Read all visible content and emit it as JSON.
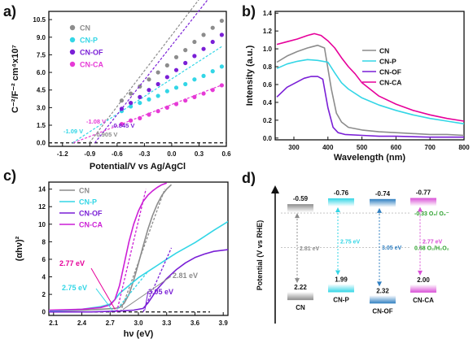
{
  "chart_data": [
    {
      "panel": "a)",
      "type": "scatter",
      "xlabel": "Potential/V vs Ag/AgCl",
      "ylabel": "C⁻²/F⁻² cm⁴x10⁷",
      "xlim": [
        -1.35,
        0.6
      ],
      "ylim": [
        -0.3,
        11.2
      ],
      "x_ticks": [
        "-1.2",
        "-0.9",
        "-0.6",
        "-0.3",
        "0.0",
        "0.3",
        "0.6"
      ],
      "x_tick_values": [
        -1.2,
        -0.9,
        -0.6,
        -0.3,
        0.0,
        0.3,
        0.6
      ],
      "y_ticks": [
        "0.0",
        "1.5",
        "3.0",
        "4.5",
        "6.0",
        "7.5",
        "9.0",
        "10.5"
      ],
      "y_tick_values": [
        0.0,
        1.5,
        3.0,
        4.5,
        6.0,
        7.5,
        9.0,
        10.5
      ],
      "legend_position": "top-left",
      "series": [
        {
          "name": "CN",
          "color": "#8c8c8c",
          "x": [
            -0.55,
            -0.45,
            -0.35,
            -0.25,
            -0.15,
            -0.05,
            0.05,
            0.15,
            0.25,
            0.35,
            0.45,
            0.55
          ],
          "y": [
            3.6,
            4.2,
            4.8,
            5.4,
            6.0,
            6.6,
            7.3,
            7.9,
            8.6,
            9.2,
            9.8,
            10.4
          ],
          "fit": {
            "x": [
              -0.905,
              -0.55
            ],
            "y": [
              0.0,
              3.6
            ]
          }
        },
        {
          "name": "CN-P",
          "color": "#33d6e6",
          "x": [
            -0.55,
            -0.45,
            -0.35,
            -0.25,
            -0.15,
            -0.05,
            0.05,
            0.15,
            0.25,
            0.35,
            0.45,
            0.55
          ],
          "y": [
            2.7,
            3.1,
            3.4,
            3.7,
            4.0,
            4.4,
            4.7,
            5.0,
            5.4,
            5.7,
            6.1,
            6.5
          ],
          "fit": {
            "x": [
              -1.09,
              -0.55
            ],
            "y": [
              0.0,
              2.7
            ]
          }
        },
        {
          "name": "CN-OF",
          "color": "#7a1fd6",
          "x": [
            -0.55,
            -0.45,
            -0.35,
            -0.25,
            -0.15,
            -0.05,
            0.05,
            0.15,
            0.25,
            0.35,
            0.45,
            0.55
          ],
          "y": [
            2.9,
            3.4,
            3.9,
            4.5,
            5.0,
            5.6,
            6.2,
            6.8,
            7.4,
            8.0,
            8.6,
            9.2
          ],
          "fit": {
            "x": [
              -0.845,
              -0.55
            ],
            "y": [
              0.0,
              2.9
            ]
          }
        },
        {
          "name": "CN-CA",
          "color": "#e63ad6",
          "x": [
            -0.55,
            -0.45,
            -0.35,
            -0.25,
            -0.15,
            -0.05,
            0.05,
            0.15,
            0.25,
            0.35,
            0.45,
            0.55
          ],
          "y": [
            1.6,
            1.9,
            2.1,
            2.4,
            2.7,
            3.0,
            3.3,
            3.6,
            3.9,
            4.2,
            4.5,
            4.9
          ],
          "fit": {
            "x": [
              -1.08,
              -0.55
            ],
            "y": [
              0.0,
              1.6
            ]
          }
        }
      ],
      "baseline": 0.0,
      "annotations": [
        {
          "text": "-1.08 V",
          "x": -1.08,
          "y": 0.0,
          "color": "#e63ad6"
        },
        {
          "text": "-1.09 V",
          "x": -1.09,
          "y": 0.0,
          "color": "#33d6e6"
        },
        {
          "text": "-0.905 V",
          "x": -0.905,
          "y": 0.0,
          "color": "#8c8c8c"
        },
        {
          "text": "-0.845 V",
          "x": -0.845,
          "y": 0.0,
          "color": "#7a1fd6"
        }
      ]
    },
    {
      "panel": "b)",
      "type": "line",
      "xlabel": "Wavelength (nm)",
      "ylabel": "Intensity (a.u.)",
      "xlim": [
        245,
        800
      ],
      "ylim": [
        -0.02,
        1.42
      ],
      "x_ticks": [
        "300",
        "400",
        "500",
        "600",
        "700",
        "800"
      ],
      "x_tick_values": [
        300,
        400,
        500,
        600,
        700,
        800
      ],
      "y_ticks": [
        "0.0",
        "0.2",
        "0.4",
        "0.6",
        "0.8",
        "1.0",
        "1.2",
        "1.4"
      ],
      "y_tick_values": [
        0.0,
        0.2,
        0.4,
        0.6,
        0.8,
        1.0,
        1.2,
        1.4
      ],
      "legend_position": "top-right",
      "series": [
        {
          "name": "CN",
          "color": "#8c8c8c",
          "x": [
            250,
            280,
            310,
            340,
            370,
            390,
            410,
            425,
            440,
            460,
            500,
            550,
            600,
            650,
            700,
            750,
            800
          ],
          "y": [
            0.85,
            0.92,
            0.97,
            1.01,
            1.04,
            1.01,
            0.55,
            0.28,
            0.18,
            0.12,
            0.09,
            0.07,
            0.06,
            0.05,
            0.04,
            0.04,
            0.03
          ]
        },
        {
          "name": "CN-P",
          "color": "#33d6e6",
          "x": [
            250,
            280,
            310,
            340,
            370,
            400,
            420,
            440,
            460,
            500,
            550,
            600,
            650,
            700,
            750,
            800
          ],
          "y": [
            0.78,
            0.83,
            0.86,
            0.88,
            0.87,
            0.85,
            0.73,
            0.62,
            0.55,
            0.45,
            0.37,
            0.31,
            0.26,
            0.22,
            0.19,
            0.16
          ]
        },
        {
          "name": "CN-OF",
          "color": "#7a1fd6",
          "x": [
            250,
            280,
            310,
            330,
            350,
            370,
            385,
            400,
            415,
            430,
            450,
            500,
            550,
            600,
            700,
            800
          ],
          "y": [
            0.46,
            0.57,
            0.63,
            0.67,
            0.69,
            0.69,
            0.66,
            0.34,
            0.12,
            0.06,
            0.04,
            0.03,
            0.02,
            0.02,
            0.01,
            0.01
          ]
        },
        {
          "name": "CN-CA",
          "color": "#e6009a",
          "x": [
            250,
            280,
            310,
            340,
            360,
            380,
            400,
            420,
            440,
            460,
            480,
            500,
            550,
            600,
            650,
            700,
            750,
            800
          ],
          "y": [
            1.05,
            1.08,
            1.11,
            1.15,
            1.17,
            1.15,
            1.09,
            1.01,
            0.9,
            0.8,
            0.72,
            0.62,
            0.47,
            0.38,
            0.31,
            0.26,
            0.22,
            0.19
          ]
        }
      ]
    },
    {
      "panel": "c)",
      "type": "line",
      "xlabel": "hν (eV)",
      "ylabel": "(αhν)²",
      "xlim": [
        2.05,
        3.95
      ],
      "ylim": [
        -0.4,
        14.8
      ],
      "x_ticks": [
        "2.1",
        "2.4",
        "2.7",
        "3.0",
        "3.3",
        "3.6",
        "3.9"
      ],
      "x_tick_values": [
        2.1,
        2.4,
        2.7,
        3.0,
        3.3,
        3.6,
        3.9
      ],
      "y_ticks": [
        "0",
        "2",
        "4",
        "6",
        "8",
        "10",
        "12",
        "14"
      ],
      "y_tick_values": [
        0,
        2,
        4,
        6,
        8,
        10,
        12,
        14
      ],
      "legend_position": "top-left",
      "series": [
        {
          "name": "CN",
          "color": "#8c8c8c",
          "x": [
            2.05,
            2.4,
            2.6,
            2.75,
            2.8,
            2.85,
            2.9,
            2.95,
            3.0,
            3.05,
            3.1,
            3.15,
            3.2,
            3.25,
            3.3,
            3.35
          ],
          "y": [
            0.1,
            0.2,
            0.3,
            0.4,
            0.5,
            1.0,
            2.0,
            3.6,
            5.5,
            7.5,
            9.4,
            11.0,
            12.3,
            13.3,
            14.0,
            14.5
          ],
          "fit": {
            "x": [
              2.81,
              3.28
            ],
            "y": [
              0.0,
              14.0
            ]
          }
        },
        {
          "name": "CN-P",
          "color": "#33d6e6",
          "x": [
            2.05,
            2.4,
            2.6,
            2.7,
            2.75,
            2.8,
            2.9,
            3.0,
            3.1,
            3.2,
            3.3,
            3.4,
            3.5,
            3.6,
            3.7,
            3.8,
            3.95
          ],
          "y": [
            0.1,
            0.3,
            0.6,
            0.9,
            1.4,
            2.1,
            3.0,
            3.9,
            4.6,
            5.3,
            6.0,
            6.7,
            7.3,
            7.9,
            8.6,
            9.3,
            10.3
          ],
          "fit": {
            "x": [
              2.75,
              3.1
            ],
            "y": [
              0.0,
              4.6
            ]
          }
        },
        {
          "name": "CN-OF",
          "color": "#7a1fd6",
          "x": [
            2.05,
            2.5,
            2.8,
            2.95,
            3.05,
            3.1,
            3.15,
            3.2,
            3.3,
            3.4,
            3.5,
            3.6,
            3.7,
            3.8,
            3.95
          ],
          "y": [
            0.0,
            0.0,
            0.1,
            0.2,
            0.4,
            1.0,
            1.8,
            2.6,
            3.8,
            4.8,
            5.6,
            6.2,
            6.6,
            6.9,
            7.1
          ],
          "fit": {
            "x": [
              3.05,
              3.35
            ],
            "y": [
              0.0,
              7.3
            ]
          }
        },
        {
          "name": "CN-CA",
          "color": "#cc1fd6",
          "x": [
            2.05,
            2.4,
            2.6,
            2.7,
            2.75,
            2.8,
            2.85,
            2.9,
            2.95,
            3.0,
            3.05,
            3.1,
            3.15,
            3.2,
            3.25,
            3.3
          ],
          "y": [
            0.2,
            0.3,
            0.5,
            0.8,
            1.4,
            3.0,
            5.5,
            8.0,
            10.0,
            11.5,
            12.6,
            13.3,
            13.8,
            14.2,
            14.5,
            14.7
          ],
          "fit": {
            "x": [
              2.77,
              3.08
            ],
            "y": [
              0.0,
              14.0
            ]
          }
        }
      ],
      "baseline": 0.0,
      "annotations": [
        {
          "text": "2.77 eV",
          "color": "#e6009a"
        },
        {
          "text": "2.81 eV",
          "color": "#8c8c8c"
        },
        {
          "text": "2.75 eV",
          "color": "#33d6e6"
        },
        {
          "text": "3.05 eV",
          "color": "#7a1fd6"
        }
      ]
    },
    {
      "panel": "d)",
      "type": "diagram",
      "ylabel": "Potential (V vs RHE)",
      "materials": [
        {
          "name": "CN",
          "cb": "-0.59",
          "vb": "2.22",
          "gap": "2.81 eV",
          "color": "#8c8c8c",
          "cb_value": -0.59,
          "vb_value": 2.22
        },
        {
          "name": "CN-P",
          "cb": "-0.76",
          "vb": "1.99",
          "gap": "2.75 eV",
          "color": "#33d6e6",
          "cb_value": -0.76,
          "vb_value": 1.99
        },
        {
          "name": "CN-OF",
          "cb": "-0.74",
          "vb": "2.32",
          "gap": "3.05 eV",
          "color": "#2f7fc1",
          "cb_value": -0.74,
          "vb_value": 2.32
        },
        {
          "name": "CN-CA",
          "cb": "-0.77",
          "vb": "2.00",
          "gap": "2.77 eV",
          "color": "#d94fd6",
          "cb_value": -0.77,
          "vb_value": 2.0
        }
      ],
      "reference_levels": [
        {
          "text": "-0.33 O₂/ O₂⁻",
          "value": -0.33,
          "color": "#2aa02a"
        },
        {
          "text": "0.68 O₂/H₂O₂",
          "value": 0.68,
          "color": "#2aa02a"
        }
      ]
    }
  ]
}
